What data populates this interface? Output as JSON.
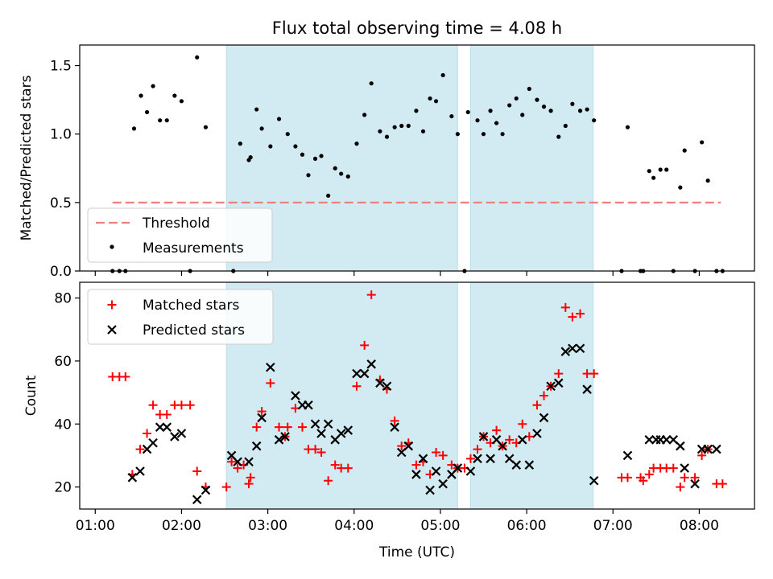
{
  "figure": {
    "title": "Flux total observing time = 4.08 h",
    "xlabel": "Time (UTC)"
  },
  "colors": {
    "band": "#add8e6",
    "threshold": "#f08080",
    "measurement": "#000000",
    "matched": "#ff0000",
    "predicted": "#000000"
  },
  "chart_data": [
    {
      "type": "scatter",
      "ylabel": "Matched/Predicted stars",
      "x_unit": "hours UTC",
      "xlim": [
        0.82,
        8.64
      ],
      "ylim": [
        0,
        1.65
      ],
      "yticks": [
        0.0,
        0.5,
        1.0,
        1.5
      ],
      "xticks": [
        "01:00",
        "02:00",
        "03:00",
        "04:00",
        "05:00",
        "06:00",
        "07:00",
        "08:00"
      ],
      "shaded_intervals": [
        [
          2.52,
          5.2
        ],
        [
          5.35,
          6.77
        ]
      ],
      "legend": {
        "placement": "lower-left",
        "entries": [
          "Threshold",
          "Measurements"
        ]
      },
      "threshold": {
        "name": "Threshold",
        "value": 0.5,
        "x_range": [
          1.2,
          8.25
        ]
      },
      "series": [
        {
          "name": "Measurements",
          "x": [
            1.2,
            1.28,
            1.35,
            1.45,
            1.53,
            1.6,
            1.67,
            1.75,
            1.83,
            1.92,
            2.0,
            2.1,
            2.18,
            2.28,
            2.6,
            2.68,
            2.78,
            2.8,
            2.87,
            2.93,
            3.03,
            3.13,
            3.23,
            3.32,
            3.4,
            3.47,
            3.55,
            3.62,
            3.7,
            3.78,
            3.85,
            3.93,
            4.03,
            4.12,
            4.2,
            4.3,
            4.38,
            4.47,
            4.55,
            4.63,
            4.72,
            4.8,
            4.88,
            4.95,
            5.03,
            5.13,
            5.2,
            5.28,
            5.32,
            5.43,
            5.5,
            5.58,
            5.65,
            5.72,
            5.8,
            5.88,
            5.95,
            6.03,
            6.12,
            6.2,
            6.28,
            6.37,
            6.45,
            6.53,
            6.62,
            6.7,
            6.78,
            7.1,
            7.17,
            7.32,
            7.35,
            7.42,
            7.47,
            7.55,
            7.62,
            7.7,
            7.78,
            7.83,
            7.95,
            8.03,
            8.1,
            8.2,
            8.27
          ],
          "y": [
            0,
            0,
            0,
            1.04,
            1.28,
            1.16,
            1.35,
            1.1,
            1.1,
            1.28,
            1.24,
            0,
            1.56,
            1.05,
            0,
            0.93,
            0.81,
            0.83,
            1.18,
            1.04,
            0.91,
            1.11,
            1.0,
            0.91,
            0.85,
            0.7,
            0.82,
            0.84,
            0.55,
            0.75,
            0.71,
            0.69,
            0.93,
            1.14,
            1.37,
            1.02,
            0.98,
            1.05,
            1.06,
            1.06,
            1.17,
            1.02,
            1.26,
            1.24,
            1.43,
            1.13,
            1.0,
            0,
            1.16,
            1.1,
            1.0,
            1.17,
            1.08,
            1.0,
            1.21,
            1.26,
            1.14,
            1.33,
            1.25,
            1.2,
            1.17,
            0.98,
            1.06,
            1.22,
            1.17,
            1.18,
            1.1,
            0,
            1.05,
            0,
            0,
            0.73,
            0.68,
            0.74,
            0.74,
            0,
            0.61,
            0.88,
            0,
            0.94,
            0.66,
            0,
            0
          ]
        }
      ]
    },
    {
      "type": "scatter",
      "ylabel": "Count",
      "x_unit": "hours UTC",
      "xlim": [
        0.82,
        8.64
      ],
      "ylim": [
        13,
        85
      ],
      "yticks": [
        20,
        40,
        60,
        80
      ],
      "xticks": [
        "01:00",
        "02:00",
        "03:00",
        "04:00",
        "05:00",
        "06:00",
        "07:00",
        "08:00"
      ],
      "shaded_intervals": [
        [
          2.52,
          5.2
        ],
        [
          5.35,
          6.77
        ]
      ],
      "legend": {
        "placement": "upper-left",
        "entries": [
          "Matched stars",
          "Predicted stars"
        ]
      },
      "series": [
        {
          "name": "Matched stars",
          "marker": "plus",
          "x": [
            1.2,
            1.28,
            1.35,
            1.43,
            1.52,
            1.6,
            1.67,
            1.75,
            1.83,
            1.92,
            2.0,
            2.1,
            2.18,
            2.28,
            2.52,
            2.58,
            2.65,
            2.72,
            2.78,
            2.8,
            2.87,
            2.93,
            3.03,
            3.13,
            3.2,
            3.23,
            3.32,
            3.4,
            3.47,
            3.55,
            3.62,
            3.7,
            3.78,
            3.85,
            3.93,
            4.03,
            4.12,
            4.2,
            4.3,
            4.38,
            4.47,
            4.55,
            4.63,
            4.72,
            4.8,
            4.88,
            4.95,
            5.03,
            5.13,
            5.2,
            5.28,
            5.35,
            5.43,
            5.5,
            5.58,
            5.65,
            5.72,
            5.8,
            5.88,
            5.95,
            6.03,
            6.12,
            6.2,
            6.28,
            6.37,
            6.45,
            6.53,
            6.62,
            6.7,
            6.78,
            7.1,
            7.17,
            7.32,
            7.35,
            7.42,
            7.47,
            7.55,
            7.62,
            7.7,
            7.78,
            7.83,
            7.95,
            8.03,
            8.1,
            8.2,
            8.27
          ],
          "y": [
            55,
            55,
            55,
            24,
            32,
            37,
            46,
            43,
            43,
            46,
            46,
            46,
            25,
            20,
            20,
            28,
            26,
            27,
            21,
            23,
            39,
            44,
            53,
            39,
            36,
            39,
            45,
            39,
            32,
            32,
            31,
            22,
            27,
            26,
            26,
            52,
            65,
            81,
            54,
            51,
            41,
            33,
            34,
            27,
            28,
            24,
            31,
            30,
            27,
            26,
            26,
            29,
            32,
            36,
            34,
            38,
            33,
            35,
            34,
            40,
            36,
            46,
            49,
            52,
            56,
            77,
            74,
            75,
            56,
            56,
            23,
            23,
            23,
            22,
            24,
            26,
            26,
            26,
            26,
            20,
            23,
            23,
            30,
            32,
            21,
            21
          ]
        },
        {
          "name": "Predicted stars",
          "marker": "x",
          "x": [
            1.43,
            1.52,
            1.6,
            1.67,
            1.75,
            1.83,
            1.92,
            2.0,
            2.18,
            2.28,
            2.58,
            2.65,
            2.78,
            2.87,
            2.93,
            3.03,
            3.13,
            3.2,
            3.32,
            3.4,
            3.47,
            3.55,
            3.62,
            3.7,
            3.78,
            3.85,
            3.93,
            4.03,
            4.12,
            4.2,
            4.3,
            4.38,
            4.47,
            4.55,
            4.63,
            4.72,
            4.8,
            4.88,
            4.95,
            5.03,
            5.13,
            5.2,
            5.35,
            5.43,
            5.5,
            5.58,
            5.65,
            5.72,
            5.8,
            5.88,
            5.95,
            6.03,
            6.12,
            6.2,
            6.28,
            6.37,
            6.45,
            6.53,
            6.62,
            6.7,
            6.78,
            7.17,
            7.42,
            7.5,
            7.55,
            7.62,
            7.7,
            7.78,
            7.83,
            7.95,
            8.03,
            8.1,
            8.2
          ],
          "y": [
            23,
            25,
            32,
            34,
            39,
            39,
            36,
            37,
            16,
            19,
            30,
            28,
            28,
            33,
            42,
            58,
            35,
            36,
            49,
            46,
            46,
            40,
            37,
            40,
            35,
            37,
            38,
            56,
            56,
            59,
            53,
            52,
            39,
            31,
            33,
            24,
            29,
            19,
            25,
            21,
            24,
            26,
            25,
            29,
            36,
            29,
            35,
            33,
            29,
            27,
            35,
            27,
            37,
            42,
            52,
            53,
            63,
            64,
            64,
            51,
            22,
            30,
            35,
            35,
            35,
            35,
            35,
            33,
            26,
            21,
            32,
            32,
            32
          ]
        }
      ]
    }
  ]
}
